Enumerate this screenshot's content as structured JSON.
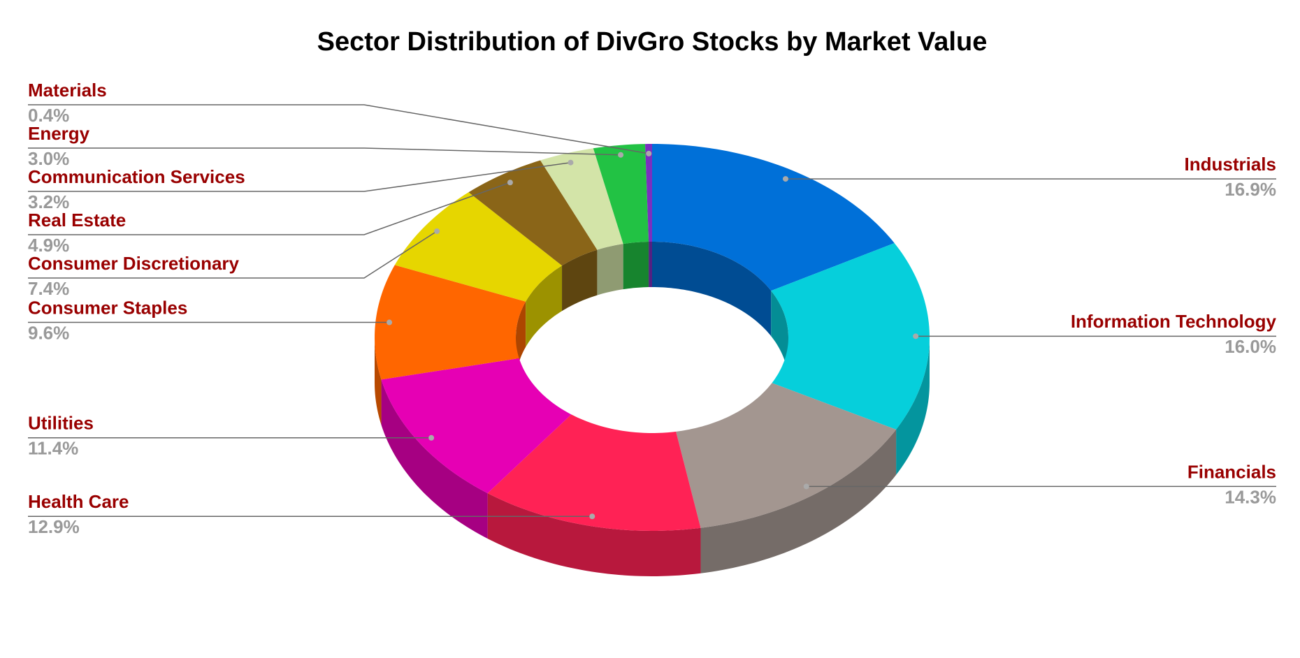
{
  "chart_data": {
    "type": "donut3d",
    "title": "Sector Distribution of DivGro Stocks by Market Value",
    "categories": [
      "Industrials",
      "Information Technology",
      "Financials",
      "Health Care",
      "Utilities",
      "Consumer Staples",
      "Consumer Discretionary",
      "Real Estate",
      "Communication Services",
      "Energy",
      "Materials"
    ],
    "values": [
      16.9,
      16.0,
      14.3,
      12.9,
      11.4,
      9.6,
      7.4,
      4.9,
      3.2,
      3.0,
      0.4
    ],
    "value_labels": [
      "16.9%",
      "16.0%",
      "14.3%",
      "12.9%",
      "11.4%",
      "9.6%",
      "7.4%",
      "4.9%",
      "3.2%",
      "3.0%",
      "0.4%"
    ],
    "colors": [
      "#0070d8",
      "#06cfdb",
      "#a39690",
      "#ff2255",
      "#e600b4",
      "#ff6600",
      "#e6d600",
      "#8a6518",
      "#d3e4a8",
      "#22c244",
      "#7b2fbf"
    ]
  }
}
